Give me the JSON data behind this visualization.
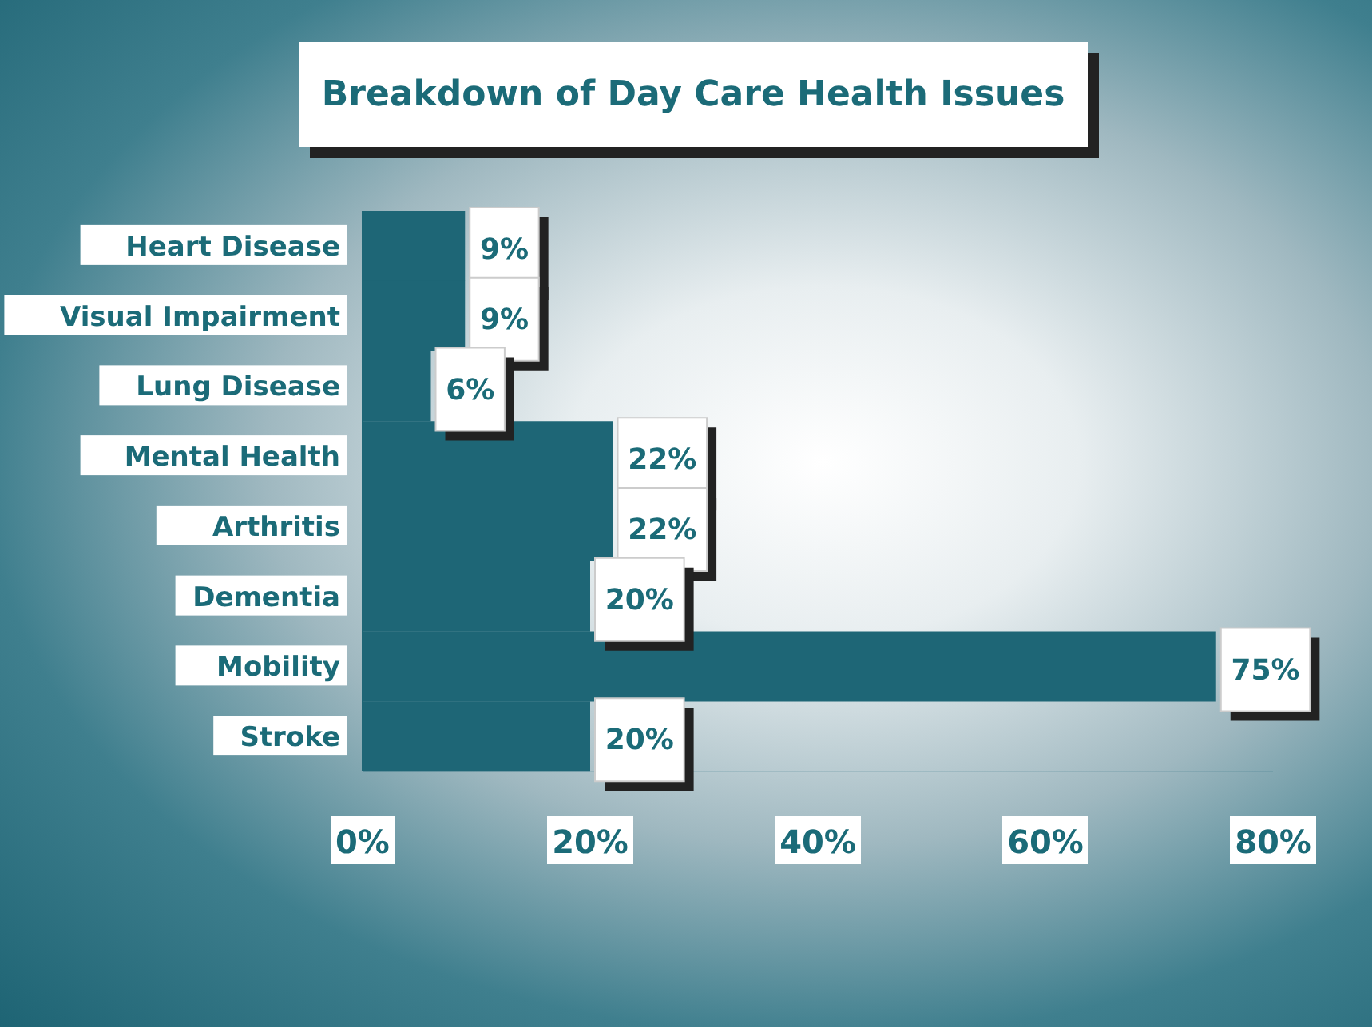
{
  "chart_data": {
    "type": "bar",
    "orientation": "horizontal",
    "title": "Breakdown of Day Care Health Issues",
    "categories": [
      "Heart Disease",
      "Visual Impairment",
      "Lung Disease",
      "Mental Health",
      "Arthritis",
      "Dementia",
      "Mobility",
      "Stroke"
    ],
    "values": [
      9,
      9,
      6,
      22,
      22,
      20,
      75,
      20
    ],
    "value_labels": [
      "9%",
      "9%",
      "6%",
      "22%",
      "22%",
      "20%",
      "75%",
      "20%"
    ],
    "color": "#1e6676",
    "xlim": [
      0,
      80
    ],
    "xticks": [
      {
        "value": 0,
        "label": "0%"
      },
      {
        "value": 20,
        "label": "20%"
      },
      {
        "value": 40,
        "label": "40%"
      },
      {
        "value": 60,
        "label": "60%"
      },
      {
        "value": 80,
        "label": "80%"
      }
    ]
  }
}
